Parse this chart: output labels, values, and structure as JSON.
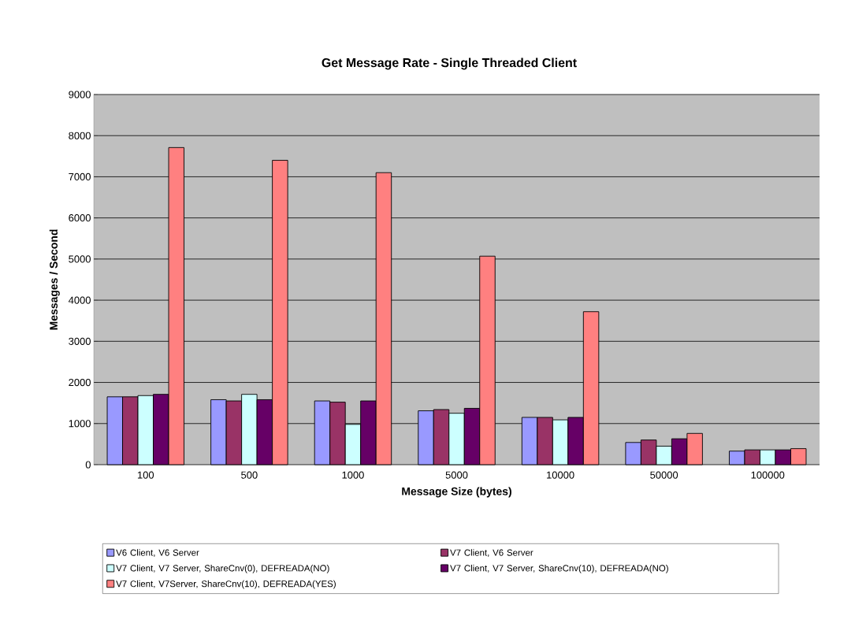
{
  "chart_data": {
    "type": "bar",
    "title": "Get Message Rate - Single Threaded Client",
    "xlabel": "Message Size (bytes)",
    "ylabel": "Messages / Second",
    "categories": [
      "100",
      "500",
      "1000",
      "5000",
      "10000",
      "50000",
      "100000"
    ],
    "series": [
      {
        "name": "V6 Client, V6 Server",
        "color": "#9999ff",
        "values": [
          1650,
          1580,
          1550,
          1310,
          1150,
          540,
          330
        ]
      },
      {
        "name": "V7 Client, V6 Server",
        "color": "#993366",
        "values": [
          1650,
          1550,
          1520,
          1340,
          1150,
          600,
          360
        ]
      },
      {
        "name": "V7 Client, V7 Server, ShareCnv(0), DEFREADA(NO)",
        "color": "#ccffff",
        "values": [
          1680,
          1710,
          980,
          1250,
          1090,
          450,
          360
        ]
      },
      {
        "name": "V7 Client, V7 Server, ShareCnv(10), DEFREADA(NO)",
        "color": "#660066",
        "values": [
          1710,
          1580,
          1550,
          1370,
          1150,
          630,
          360
        ]
      },
      {
        "name": "V7 Client, V7Server, ShareCnv(10), DEFREADA(YES)",
        "color": "#ff8080",
        "values": [
          7710,
          7400,
          7100,
          5070,
          3720,
          760,
          390
        ]
      }
    ],
    "ylim": [
      0,
      9000
    ],
    "yticks": [
      0,
      1000,
      2000,
      3000,
      4000,
      5000,
      6000,
      7000,
      8000,
      9000
    ],
    "grid": "y",
    "legend": "bottom"
  }
}
